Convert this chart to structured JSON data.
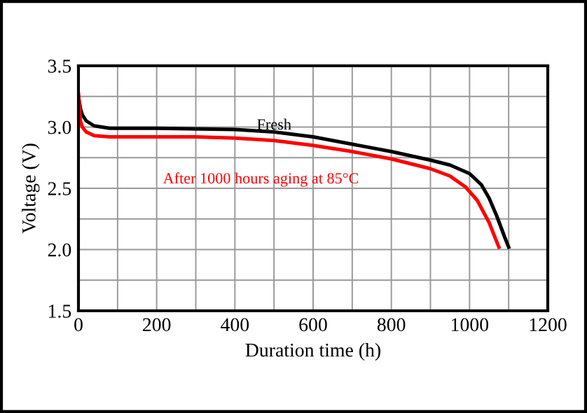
{
  "chart_data": {
    "type": "line",
    "xlabel": "Duration time (h)",
    "ylabel": "Voltage (V)",
    "xlim": [
      0,
      1200
    ],
    "ylim": [
      1.5,
      3.5
    ],
    "xticks": [
      0,
      200,
      400,
      600,
      800,
      1000,
      1200
    ],
    "yticks": [
      1.5,
      {
        "value": 2,
        "label": "2.0"
      },
      2.5,
      {
        "value": 3,
        "label": "3.0"
      },
      3.5
    ],
    "grid": true,
    "marker": "none",
    "line_style": "solid",
    "series": [
      {
        "name": "Fresh",
        "color": "#000000",
        "x": [
          0,
          5,
          10,
          20,
          40,
          80,
          200,
          400,
          500,
          600,
          700,
          800,
          900,
          950,
          1000,
          1030,
          1050,
          1070,
          1090,
          1100
        ],
        "values": [
          3.25,
          3.15,
          3.1,
          3.05,
          3.01,
          2.99,
          2.99,
          2.98,
          2.96,
          2.92,
          2.86,
          2.8,
          2.73,
          2.69,
          2.62,
          2.53,
          2.42,
          2.27,
          2.1,
          2.02
        ]
      },
      {
        "name": "After 1000 hours aging at 85°C",
        "color": "#ff0000",
        "x": [
          0,
          5,
          10,
          20,
          40,
          80,
          200,
          300,
          400,
          500,
          600,
          700,
          800,
          900,
          950,
          990,
          1020,
          1050,
          1075
        ],
        "values": [
          3.27,
          3.05,
          3.0,
          2.96,
          2.93,
          2.92,
          2.92,
          2.92,
          2.91,
          2.89,
          2.85,
          2.8,
          2.74,
          2.66,
          2.6,
          2.51,
          2.4,
          2.22,
          2.02
        ]
      }
    ]
  }
}
